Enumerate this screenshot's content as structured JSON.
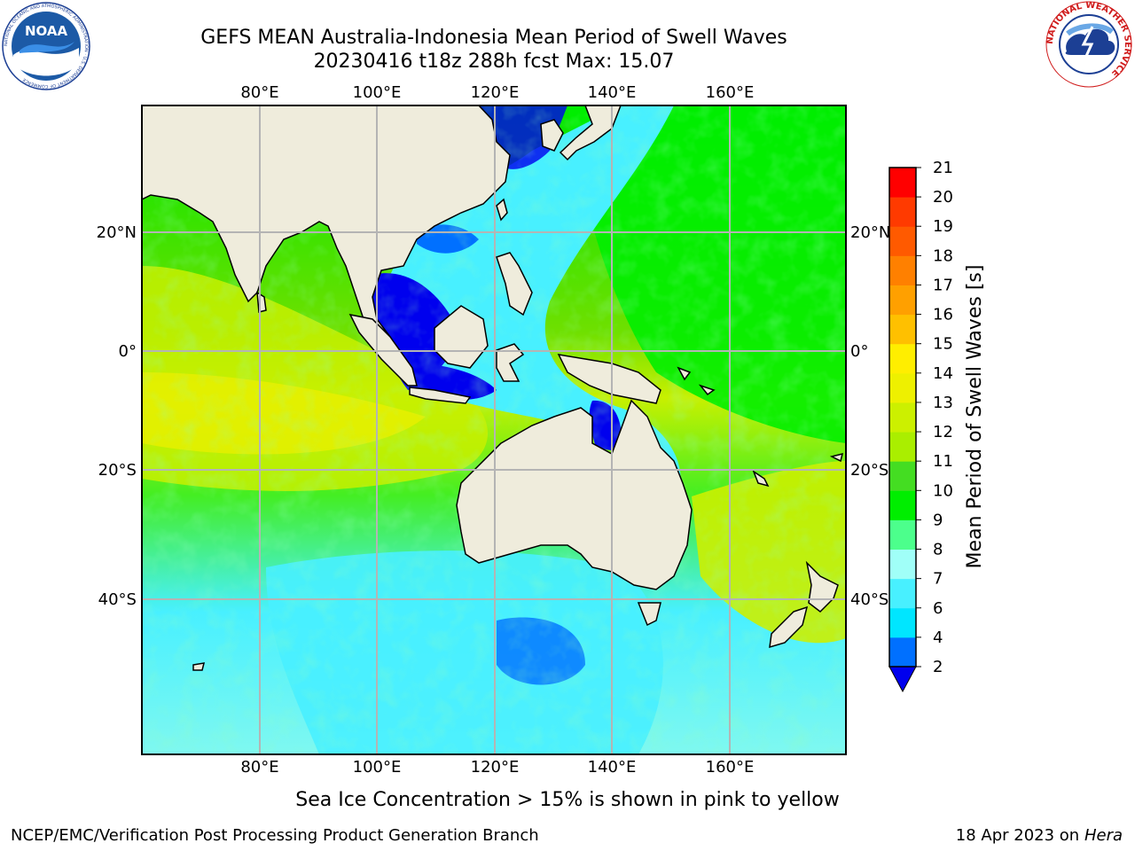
{
  "title": {
    "line1": "GEFS MEAN Australia-Indonesia Mean Period of Swell Waves",
    "line2": "20230416 t18z 288h fcst   Max: 15.07"
  },
  "logos": {
    "left": {
      "icon": "noaa-logo-icon",
      "text": "NOAA",
      "ring_text": "NATIONAL OCEANIC AND ATMOSPHERIC ADMINISTRATION · U.S. DEPARTMENT OF COMMERCE"
    },
    "right": {
      "icon": "nws-logo-icon",
      "ring_text": "NATIONAL WEATHER SERVICE"
    }
  },
  "map": {
    "lon_ticks": [
      "80°E",
      "100°E",
      "120°E",
      "140°E",
      "160°E"
    ],
    "lat_ticks": [
      "20°N",
      "0°",
      "20°S",
      "40°S"
    ],
    "colors": {
      "land": "#efecdc",
      "grid": "#b4b4b4",
      "coast": "#000000"
    }
  },
  "colorbar": {
    "label": "Mean Period of Swell Waves [s]",
    "ticks": [
      "2",
      "4",
      "6",
      "7",
      "8",
      "9",
      "10",
      "11",
      "12",
      "13",
      "14",
      "15",
      "16",
      "17",
      "18",
      "19",
      "20",
      "21"
    ],
    "colors": [
      "#0070ff",
      "#00e6ff",
      "#48f0ff",
      "#a0fff8",
      "#4cff8c",
      "#00ee00",
      "#44dd22",
      "#aaee00",
      "#ccf000",
      "#eef000",
      "#ffee00",
      "#ffc000",
      "#ffa000",
      "#ff8000",
      "#ff5a00",
      "#ff3a00",
      "#ff0000"
    ],
    "under_color": "#0000ee"
  },
  "ice_note": "Sea Ice Concentration > 15% is shown in pink to yellow",
  "footer": {
    "left": "NCEP/EMC/Verification Post Processing Product Generation Branch",
    "right_date": "18 Apr 2023 on ",
    "right_host": "Hera"
  }
}
